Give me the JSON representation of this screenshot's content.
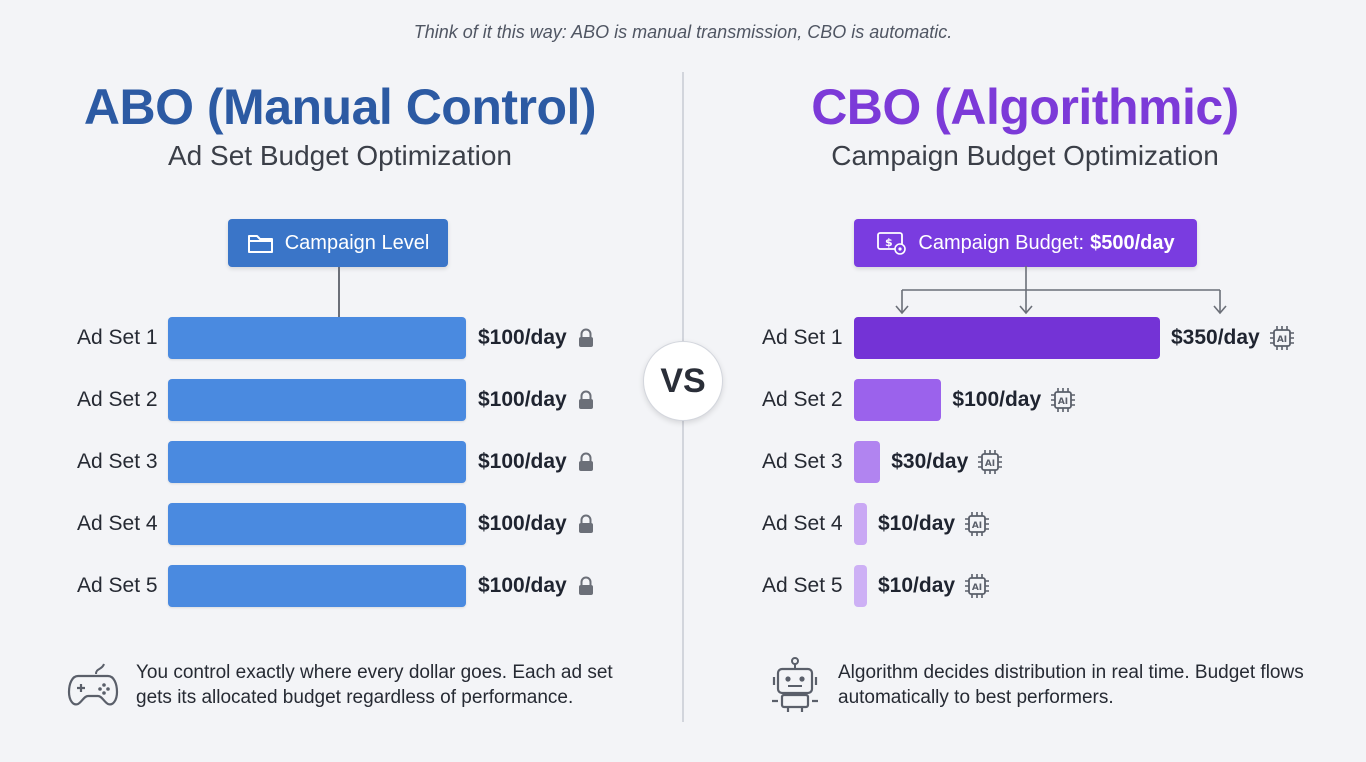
{
  "header": {
    "quote": "Think of it this way: ABO is manual transmission, CBO is automatic."
  },
  "vs_label": "VS",
  "abo": {
    "title": "ABO (Manual Control)",
    "subtitle": "Ad Set Budget Optimization",
    "box_label": "Campaign Level",
    "note": "You control exactly where every dollar goes. Each ad set gets its allocated budget regardless of performance."
  },
  "cbo": {
    "title": "CBO (Algorithmic)",
    "subtitle": "Campaign Budget Optimization",
    "box_label": "Campaign Budget:",
    "box_value": "$500/day",
    "note": "Algorithm decides distribution in real time. Budget flows automatically to best performers."
  },
  "colors": {
    "abo_accent": "#2c5aa3",
    "abo_bar": "#4a8ae0",
    "cbo_accent": "#7c3ad8",
    "cbo_bars": [
      "#7433d6",
      "#9b62ec",
      "#b184f0",
      "#c9a8f4",
      "#cdb0f5"
    ]
  },
  "chart_data": [
    {
      "type": "bar",
      "orientation": "horizontal",
      "title": "ABO (Manual Control)",
      "categories": [
        "Ad Set 1",
        "Ad Set 2",
        "Ad Set 3",
        "Ad Set 4",
        "Ad Set 5"
      ],
      "values": [
        100,
        100,
        100,
        100,
        100
      ],
      "value_labels": [
        "$100/day",
        "$100/day",
        "$100/day",
        "$100/day",
        "$100/day"
      ],
      "unit": "$/day",
      "marker_icon": "lock-icon",
      "xlim": [
        0,
        100
      ]
    },
    {
      "type": "bar",
      "orientation": "horizontal",
      "title": "CBO (Algorithmic)",
      "categories": [
        "Ad Set 1",
        "Ad Set 2",
        "Ad Set 3",
        "Ad Set 4",
        "Ad Set 5"
      ],
      "values": [
        350,
        100,
        30,
        10,
        10
      ],
      "value_labels": [
        "$350/day",
        "$100/day",
        "$30/day",
        "$10/day",
        "$10/day"
      ],
      "unit": "$/day",
      "total": 500,
      "marker_icon": "ai-chip-icon",
      "xlim": [
        0,
        350
      ]
    }
  ]
}
